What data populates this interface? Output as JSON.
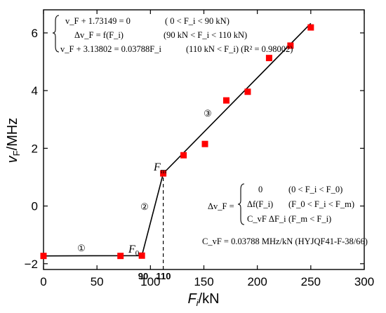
{
  "chart_data": {
    "type": "scatter",
    "xlabel": "F",
    "xlabel_sub": "i",
    "xlabel_unit": "/kN",
    "ylabel": "v",
    "ylabel_sub": "F",
    "ylabel_unit": "/MHz",
    "xlim": [
      0,
      300
    ],
    "ylim": [
      -2.2,
      6.8
    ],
    "x_ticks": [
      0,
      50,
      100,
      150,
      200,
      250,
      300
    ],
    "y_ticks": [
      -2,
      0,
      2,
      4,
      6
    ],
    "x_tick_labels": [
      "0",
      "50",
      "100",
      "150",
      "200",
      "250",
      "300"
    ],
    "y_tick_labels": [
      "−2",
      "0",
      "2",
      "4",
      "6"
    ],
    "extra_x_labels": [
      "90",
      "110"
    ],
    "points": {
      "color": "#ff0000",
      "x": [
        0,
        72,
        92,
        112,
        131,
        151,
        171,
        191,
        211,
        231,
        250
      ],
      "y": [
        -1.73,
        -1.73,
        -1.72,
        1.13,
        1.76,
        2.15,
        3.66,
        3.96,
        5.13,
        5.56,
        6.19
      ]
    },
    "fit_line": {
      "color": "#000000",
      "x": [
        0,
        92,
        112,
        250
      ],
      "y": [
        -1.73,
        -1.72,
        1.13,
        6.33
      ]
    },
    "dashed_marker": {
      "x": 112,
      "y_from": -2.2,
      "y_to": 1.13
    },
    "annotations": {
      "segment_1": "①",
      "segment_2": "②",
      "segment_3": "③",
      "f0_main": "F",
      "f0_sub": "0",
      "fm_main": "F",
      "fm_sub": "m"
    },
    "equations_top": [
      {
        "left": "v_F + 1.73149 = 0",
        "cond": "( 0 < F_i < 90 kN)"
      },
      {
        "left": "Δv_F = f(F_i)",
        "cond": "(90 kN < F_i < 110 kN)"
      },
      {
        "left": "v_F + 3.13802 = 0.03788F_i",
        "cond": "(110 kN < F_i) (R² = 0.98002)"
      }
    ],
    "equations_bottom": {
      "lhs": "Δv_F =",
      "rows": [
        {
          "expr": "0",
          "cond": "(0 < F_i < F_0)"
        },
        {
          "expr": "Δf(F_i)",
          "cond": "(F_0 < F_i < F_m)"
        },
        {
          "expr": "C_vF ΔF_i",
          "cond": "(F_m < F_i)"
        }
      ],
      "coefficient": "C_vF = 0.03788 MHz/kN (HYJQF41-F-38/66)"
    }
  }
}
